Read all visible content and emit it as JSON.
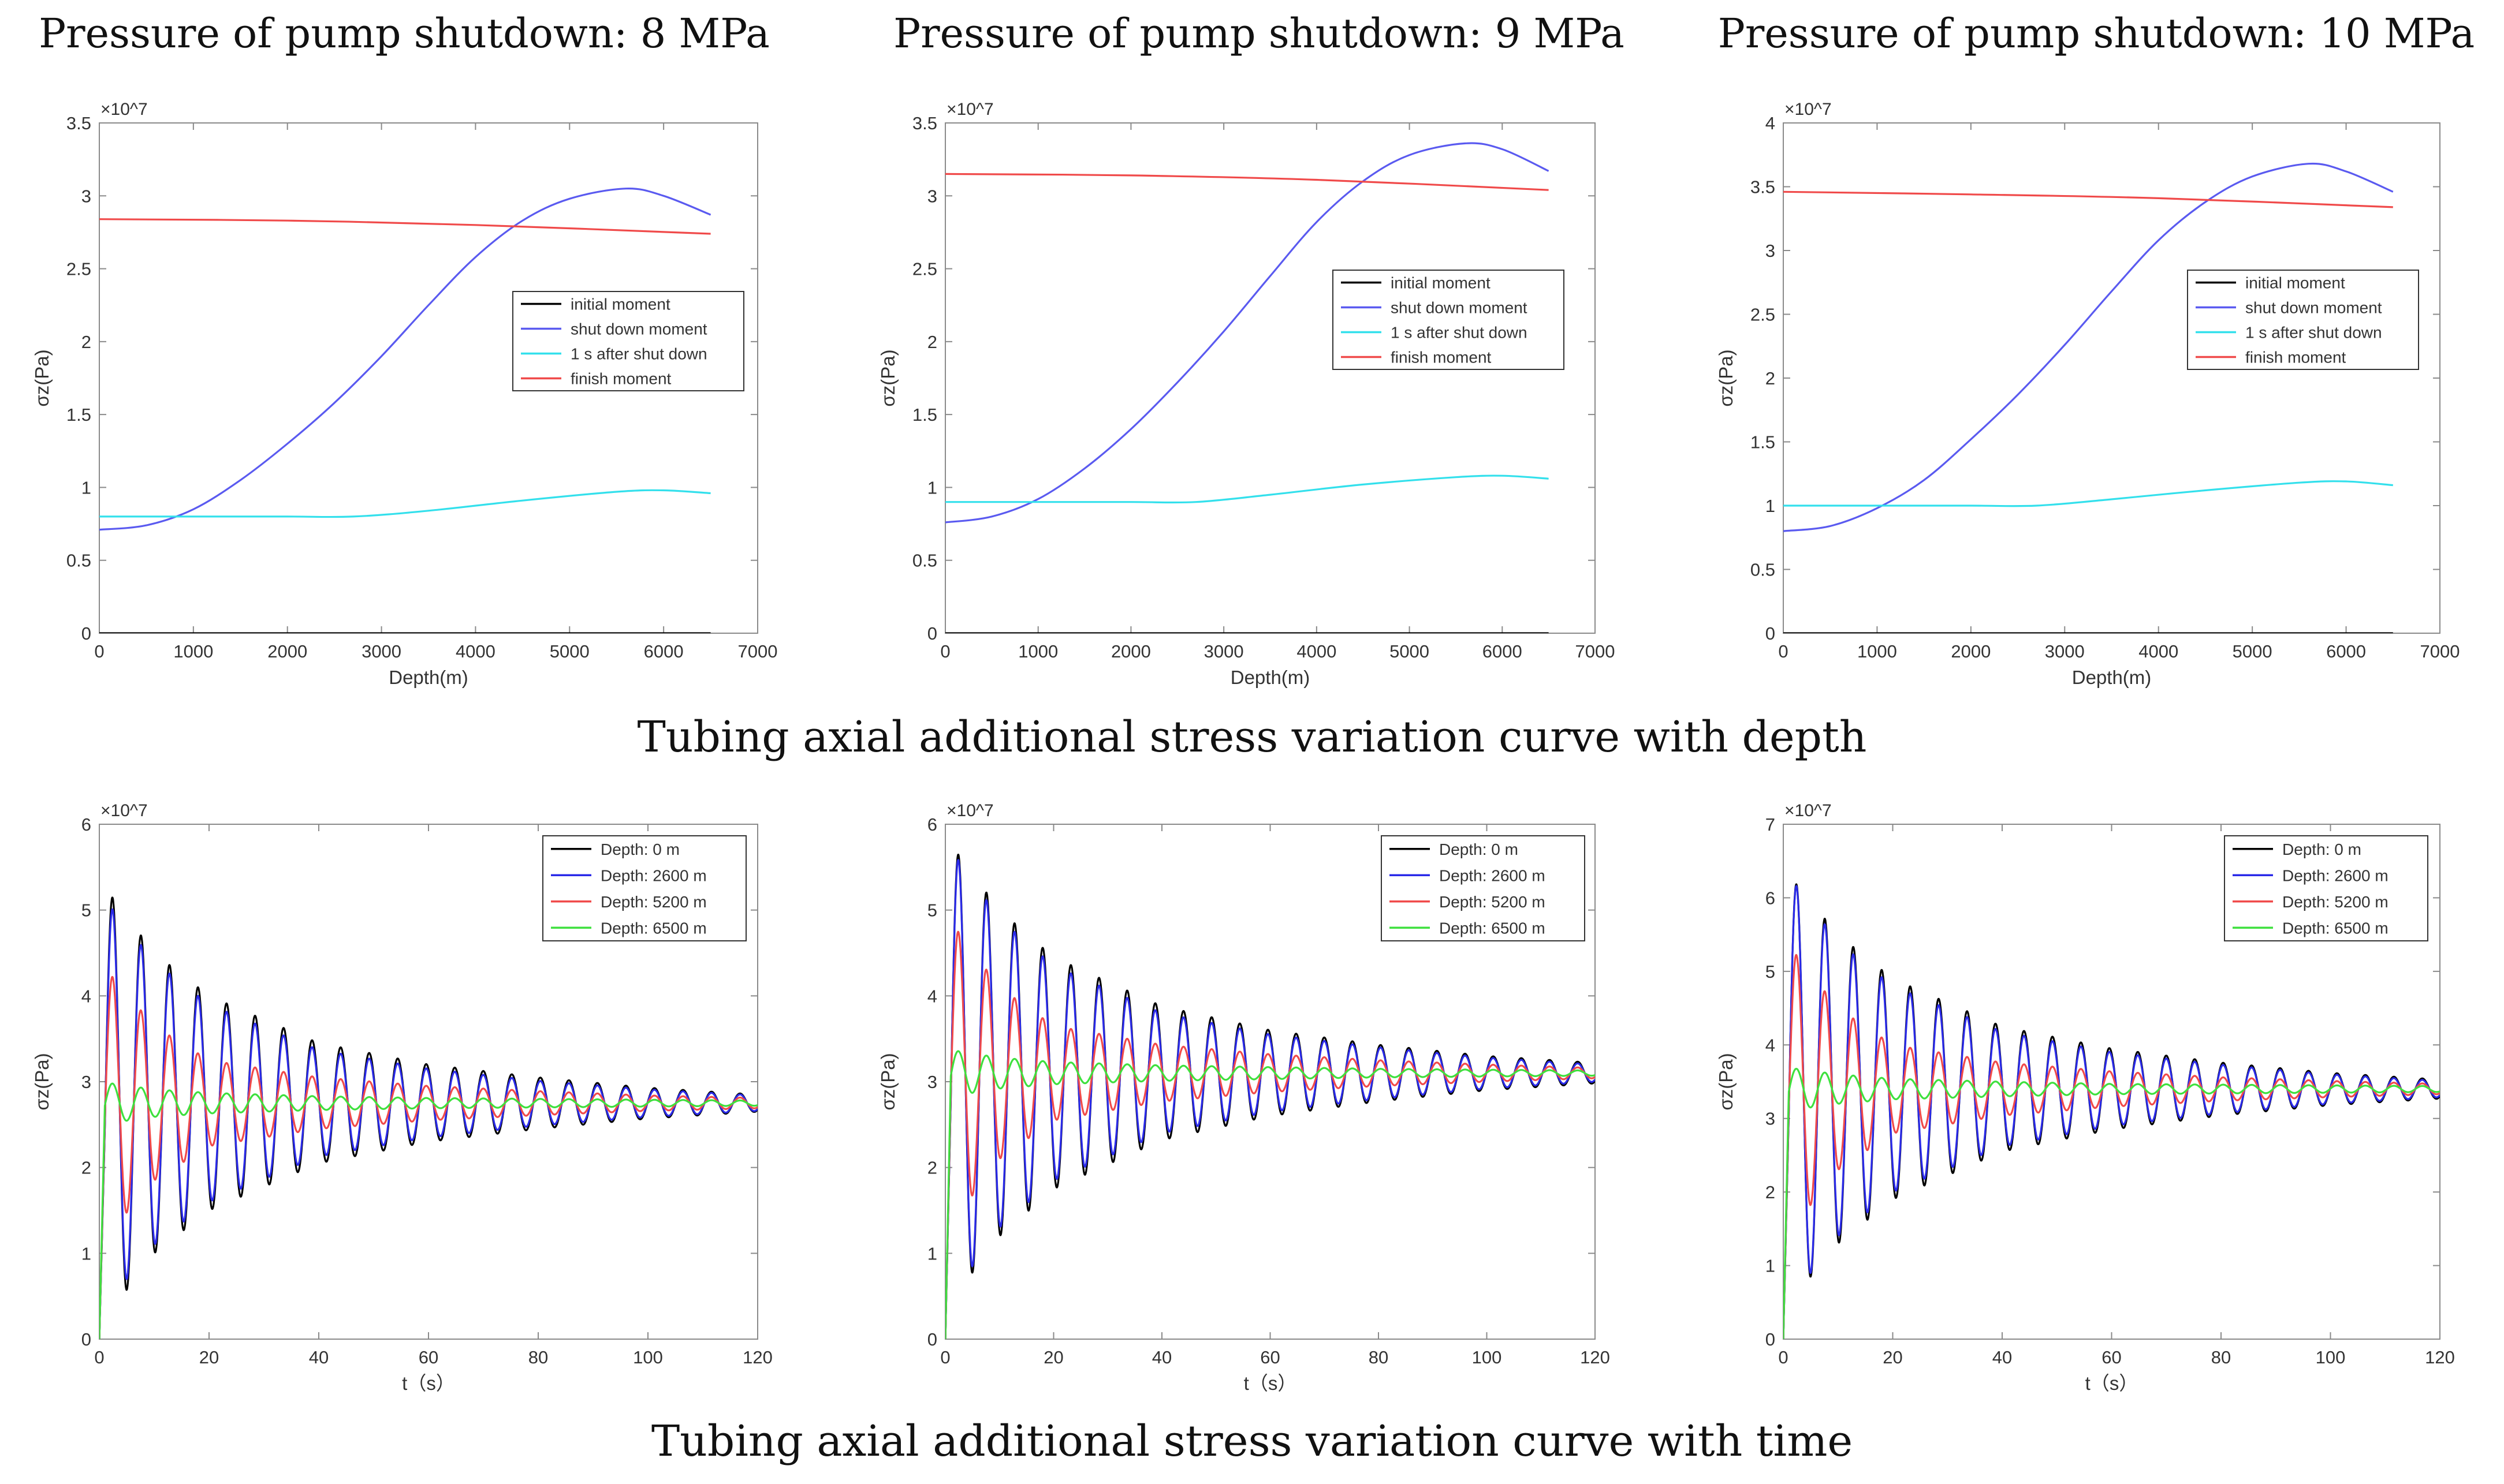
{
  "figure": {
    "column_titles": [
      "Pressure of pump shutdown: 8 MPa",
      "Pressure of pump shutdown: 9 MPa",
      "Pressure of pump shutdown: 10 MPa"
    ],
    "row_captions": [
      "Tubing axial additional stress variation curve with depth",
      "Tubing axial additional stress variation curve with time"
    ]
  },
  "chart_data": [
    {
      "type": "line",
      "title": "Pressure of pump shutdown: 8 MPa",
      "xlabel": "Depth(m)",
      "ylabel": "σz(Pa)",
      "exponent": "×10^7",
      "xlim": [
        0,
        7000
      ],
      "ylim": [
        0,
        3.5
      ],
      "xticks": [
        0,
        1000,
        2000,
        3000,
        4000,
        5000,
        6000,
        7000
      ],
      "yticks": [
        0,
        0.5,
        1,
        1.5,
        2,
        2.5,
        3,
        3.5
      ],
      "legend_position": "right",
      "series": [
        {
          "name": "initial moment",
          "color": "#000000",
          "x": [
            0,
            6500
          ],
          "y": [
            0,
            0
          ]
        },
        {
          "name": "shut down moment",
          "color": "#5a5af0",
          "x": [
            0,
            500,
            1000,
            1500,
            2000,
            2500,
            3000,
            3500,
            4000,
            4500,
            5000,
            5600,
            6000,
            6500
          ],
          "y": [
            0.71,
            0.74,
            0.85,
            1.05,
            1.3,
            1.58,
            1.9,
            2.25,
            2.58,
            2.83,
            2.98,
            3.05,
            3.0,
            2.87
          ]
        },
        {
          "name": "1 s after shut down",
          "color": "#33e0ec",
          "x": [
            0,
            1000,
            2000,
            2700,
            3500,
            4500,
            5500,
            6000,
            6500
          ],
          "y": [
            0.8,
            0.8,
            0.8,
            0.8,
            0.84,
            0.91,
            0.97,
            0.98,
            0.96
          ]
        },
        {
          "name": "finish moment",
          "color": "#f04a4a",
          "x": [
            0,
            2000,
            4000,
            6500
          ],
          "y": [
            2.84,
            2.83,
            2.8,
            2.74
          ]
        }
      ]
    },
    {
      "type": "line",
      "title": "Pressure of pump shutdown: 9 MPa",
      "xlabel": "Depth(m)",
      "ylabel": "σz(Pa)",
      "exponent": "×10^7",
      "xlim": [
        0,
        7000
      ],
      "ylim": [
        0,
        3.5
      ],
      "xticks": [
        0,
        1000,
        2000,
        3000,
        4000,
        5000,
        6000,
        7000
      ],
      "yticks": [
        0,
        0.5,
        1,
        1.5,
        2,
        2.5,
        3,
        3.5
      ],
      "legend_position": "right",
      "series": [
        {
          "name": "initial moment",
          "color": "#000000",
          "x": [
            0,
            6500
          ],
          "y": [
            0,
            0
          ]
        },
        {
          "name": "shut down moment",
          "color": "#5a5af0",
          "x": [
            0,
            500,
            1000,
            1500,
            2000,
            2500,
            3000,
            3500,
            4000,
            4500,
            5000,
            5600,
            6000,
            6500
          ],
          "y": [
            0.76,
            0.8,
            0.92,
            1.13,
            1.4,
            1.72,
            2.07,
            2.45,
            2.82,
            3.1,
            3.28,
            3.36,
            3.32,
            3.17
          ]
        },
        {
          "name": "1 s after shut down",
          "color": "#33e0ec",
          "x": [
            0,
            1000,
            2000,
            2700,
            3500,
            4500,
            5500,
            6000,
            6500
          ],
          "y": [
            0.9,
            0.9,
            0.9,
            0.9,
            0.95,
            1.02,
            1.07,
            1.08,
            1.06
          ]
        },
        {
          "name": "finish moment",
          "color": "#f04a4a",
          "x": [
            0,
            2000,
            4000,
            6500
          ],
          "y": [
            3.15,
            3.14,
            3.11,
            3.04
          ]
        }
      ]
    },
    {
      "type": "line",
      "title": "Pressure of pump shutdown: 10 MPa",
      "xlabel": "Depth(m)",
      "ylabel": "σz(Pa)",
      "exponent": "×10^7",
      "xlim": [
        0,
        7000
      ],
      "ylim": [
        0,
        4
      ],
      "xticks": [
        0,
        1000,
        2000,
        3000,
        4000,
        5000,
        6000,
        7000
      ],
      "yticks": [
        0,
        0.5,
        1,
        1.5,
        2,
        2.5,
        3,
        3.5,
        4
      ],
      "legend_position": "right",
      "series": [
        {
          "name": "initial moment",
          "color": "#000000",
          "x": [
            0,
            6500
          ],
          "y": [
            0,
            0
          ]
        },
        {
          "name": "shut down moment",
          "color": "#5a5af0",
          "x": [
            0,
            500,
            1000,
            1500,
            2000,
            2500,
            3000,
            3500,
            4000,
            4500,
            5000,
            5600,
            6000,
            6500
          ],
          "y": [
            0.8,
            0.84,
            0.98,
            1.2,
            1.52,
            1.87,
            2.26,
            2.68,
            3.08,
            3.38,
            3.58,
            3.68,
            3.62,
            3.46
          ]
        },
        {
          "name": "1 s after shut down",
          "color": "#33e0ec",
          "x": [
            0,
            1000,
            2000,
            2700,
            3500,
            4500,
            5500,
            6000,
            6500
          ],
          "y": [
            1.0,
            1.0,
            1.0,
            1.0,
            1.05,
            1.12,
            1.18,
            1.19,
            1.16
          ]
        },
        {
          "name": "finish moment",
          "color": "#f04a4a",
          "x": [
            0,
            2000,
            4000,
            6500
          ],
          "y": [
            3.46,
            3.44,
            3.41,
            3.34
          ]
        }
      ]
    },
    {
      "type": "line",
      "xlabel": "t（s）",
      "ylabel": "σz(Pa)",
      "exponent": "×10^7",
      "xlim": [
        0,
        120
      ],
      "ylim": [
        0,
        6
      ],
      "xticks": [
        0,
        20,
        40,
        60,
        80,
        100,
        120
      ],
      "yticks": [
        0,
        1,
        2,
        3,
        4,
        5,
        6
      ],
      "legend_position": "top-right",
      "oscillation": {
        "period_s": 5.2,
        "mean": 2.75,
        "ramp_end_s": 1.0,
        "start_value": 0
      },
      "series": [
        {
          "name": "Depth: 0 m",
          "color": "#000000",
          "first_peak_t": 2.4,
          "amplitude_t": [
            0,
            10,
            20,
            40,
            60,
            80,
            100,
            120
          ],
          "amplitude": [
            2.6,
            1.75,
            1.25,
            0.7,
            0.45,
            0.3,
            0.18,
            0.1
          ]
        },
        {
          "name": "Depth: 2600 m",
          "color": "#2a2ae8",
          "first_peak_t": 2.4,
          "amplitude_t": [
            0,
            10,
            20,
            40,
            60,
            80,
            100,
            120
          ],
          "amplitude": [
            2.45,
            1.65,
            1.15,
            0.62,
            0.4,
            0.26,
            0.16,
            0.09
          ]
        },
        {
          "name": "Depth: 5200 m",
          "color": "#f04a4a",
          "first_peak_t": 2.4,
          "amplitude_t": [
            0,
            10,
            20,
            40,
            60,
            80,
            100,
            120
          ],
          "amplitude": [
            1.65,
            0.9,
            0.5,
            0.3,
            0.2,
            0.14,
            0.09,
            0.06
          ]
        },
        {
          "name": "Depth: 6500 m",
          "color": "#3ee03e",
          "first_peak_t": 2.4,
          "amplitude_t": [
            0,
            10,
            20,
            40,
            60,
            80,
            100,
            120
          ],
          "amplitude": [
            0.25,
            0.16,
            0.12,
            0.08,
            0.06,
            0.05,
            0.04,
            0.03
          ]
        }
      ]
    },
    {
      "type": "line",
      "xlabel": "t（s）",
      "ylabel": "σz(Pa)",
      "exponent": "×10^7",
      "xlim": [
        0,
        120
      ],
      "ylim": [
        0,
        6
      ],
      "xticks": [
        0,
        20,
        40,
        60,
        80,
        100,
        120
      ],
      "yticks": [
        0,
        1,
        2,
        3,
        4,
        5,
        6
      ],
      "legend_position": "top-right",
      "oscillation": {
        "period_s": 5.2,
        "mean": 3.1,
        "ramp_end_s": 1.0,
        "start_value": 0
      },
      "series": [
        {
          "name": "Depth: 0 m",
          "color": "#000000",
          "first_peak_t": 2.4,
          "amplitude_t": [
            0,
            10,
            20,
            40,
            60,
            80,
            100,
            120
          ],
          "amplitude": [
            2.75,
            1.9,
            1.35,
            0.78,
            0.5,
            0.33,
            0.2,
            0.12
          ]
        },
        {
          "name": "Depth: 2600 m",
          "color": "#2a2ae8",
          "first_peak_t": 2.4,
          "amplitude_t": [
            0,
            10,
            20,
            40,
            60,
            80,
            100,
            120
          ],
          "amplitude": [
            2.7,
            1.8,
            1.25,
            0.7,
            0.45,
            0.3,
            0.18,
            0.1
          ]
        },
        {
          "name": "Depth: 5200 m",
          "color": "#f04a4a",
          "first_peak_t": 2.4,
          "amplitude_t": [
            0,
            10,
            20,
            40,
            60,
            80,
            100,
            120
          ],
          "amplitude": [
            1.85,
            1.0,
            0.55,
            0.33,
            0.22,
            0.15,
            0.1,
            0.06
          ]
        },
        {
          "name": "Depth: 6500 m",
          "color": "#3ee03e",
          "first_peak_t": 2.4,
          "amplitude_t": [
            0,
            10,
            20,
            40,
            60,
            80,
            100,
            120
          ],
          "amplitude": [
            0.28,
            0.18,
            0.13,
            0.09,
            0.07,
            0.05,
            0.04,
            0.03
          ]
        }
      ]
    },
    {
      "type": "line",
      "xlabel": "t（s）",
      "ylabel": "σz(Pa)",
      "exponent": "×10^7",
      "xlim": [
        0,
        120
      ],
      "ylim": [
        0,
        7
      ],
      "xticks": [
        0,
        20,
        40,
        60,
        80,
        100,
        120
      ],
      "yticks": [
        0,
        1,
        2,
        3,
        4,
        5,
        6,
        7
      ],
      "legend_position": "top-right",
      "oscillation": {
        "period_s": 5.2,
        "mean": 3.4,
        "ramp_end_s": 1.0,
        "start_value": 0
      },
      "series": [
        {
          "name": "Depth: 0 m",
          "color": "#000000",
          "first_peak_t": 2.4,
          "amplitude_t": [
            0,
            10,
            20,
            40,
            60,
            80,
            100,
            120
          ],
          "amplitude": [
            3.0,
            2.1,
            1.5,
            0.85,
            0.55,
            0.36,
            0.22,
            0.13
          ]
        },
        {
          "name": "Depth: 2600 m",
          "color": "#2a2ae8",
          "first_peak_t": 2.4,
          "amplitude_t": [
            0,
            10,
            20,
            40,
            60,
            80,
            100,
            120
          ],
          "amplitude": [
            3.0,
            2.0,
            1.4,
            0.78,
            0.5,
            0.33,
            0.2,
            0.11
          ]
        },
        {
          "name": "Depth: 5200 m",
          "color": "#f04a4a",
          "first_peak_t": 2.4,
          "amplitude_t": [
            0,
            10,
            20,
            40,
            60,
            80,
            100,
            120
          ],
          "amplitude": [
            2.05,
            1.1,
            0.6,
            0.36,
            0.24,
            0.16,
            0.11,
            0.07
          ]
        },
        {
          "name": "Depth: 6500 m",
          "color": "#3ee03e",
          "first_peak_t": 2.4,
          "amplitude_t": [
            0,
            10,
            20,
            40,
            60,
            80,
            100,
            120
          ],
          "amplitude": [
            0.3,
            0.2,
            0.14,
            0.1,
            0.07,
            0.06,
            0.05,
            0.04
          ]
        }
      ]
    }
  ]
}
